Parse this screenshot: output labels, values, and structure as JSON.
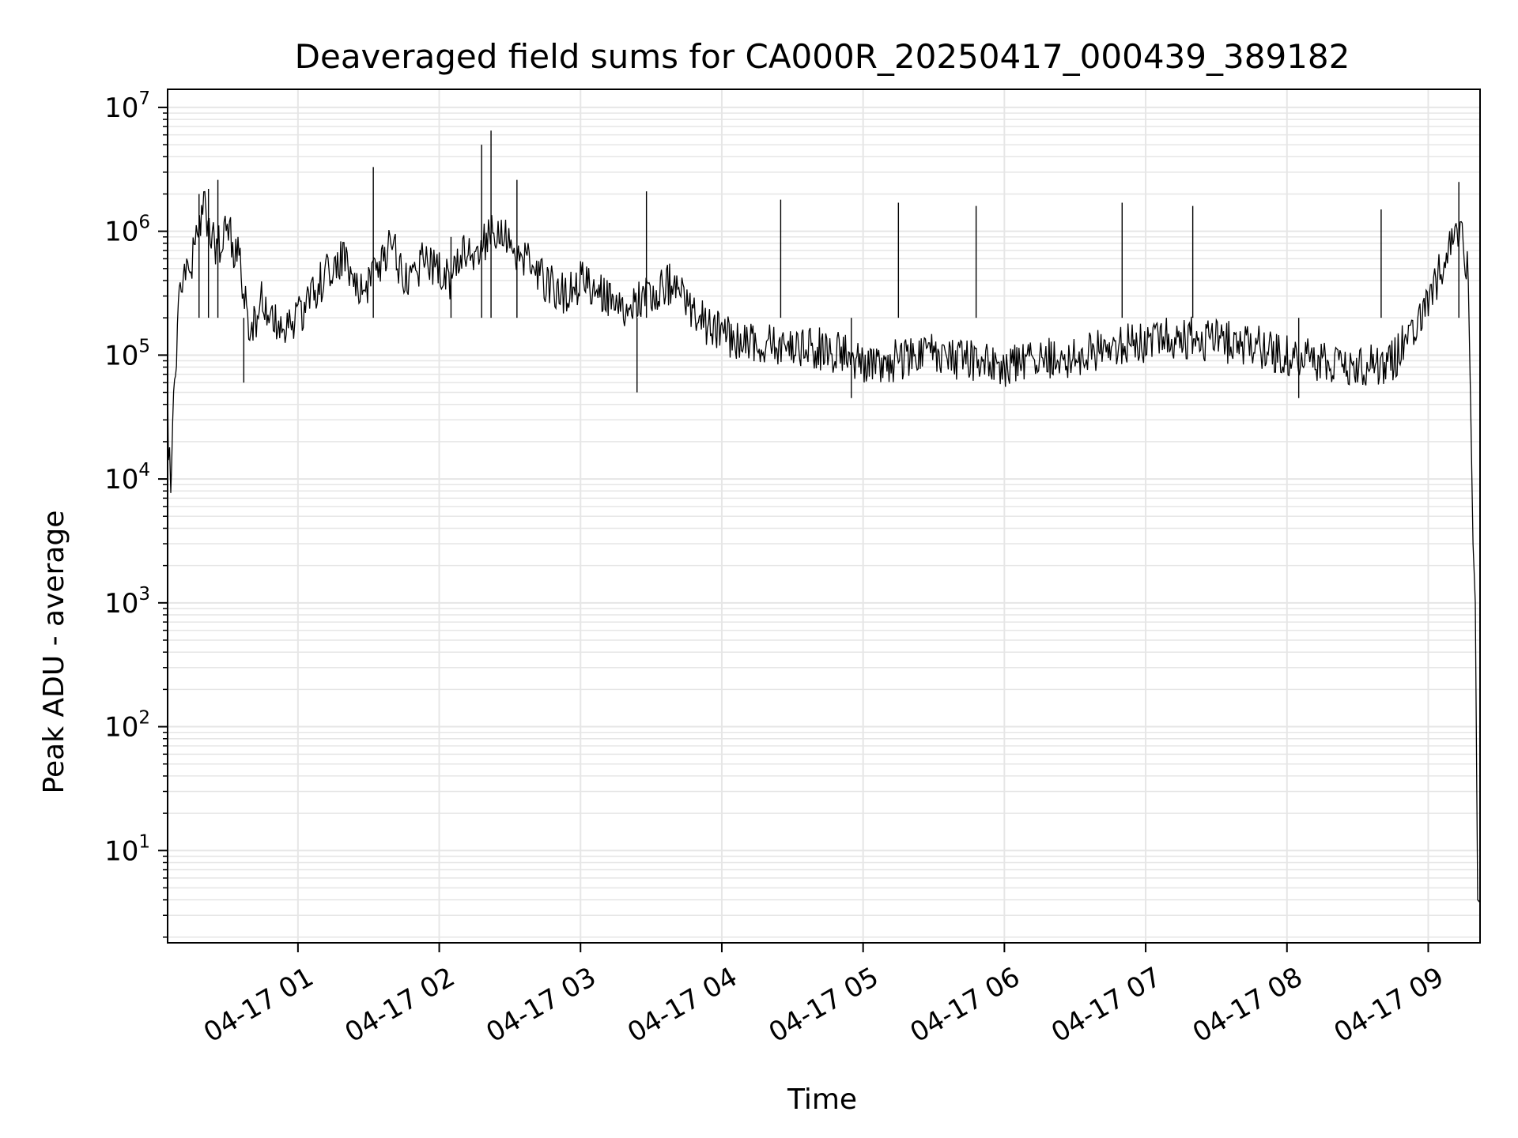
{
  "chart_data": {
    "type": "line",
    "title": "Deaveraged field sums for CA000R_20250417_000439_389182",
    "xlabel": "Time",
    "ylabel": "Peak ADU - average",
    "y_scale": "log",
    "ylim": [
      1.8,
      14000000
    ],
    "xlim": [
      "2025-04-17 00:04:39",
      "2025-04-17 09:22:00"
    ],
    "grid": true,
    "colors": {
      "line": "#000000",
      "grid": "#e6e6e6",
      "axis": "#000000",
      "background": "#ffffff"
    },
    "x_ticks": [
      {
        "time": "2025-04-17 01:00",
        "label": "04-17 01"
      },
      {
        "time": "2025-04-17 02:00",
        "label": "04-17 02"
      },
      {
        "time": "2025-04-17 03:00",
        "label": "04-17 03"
      },
      {
        "time": "2025-04-17 04:00",
        "label": "04-17 04"
      },
      {
        "time": "2025-04-17 05:00",
        "label": "04-17 05"
      },
      {
        "time": "2025-04-17 06:00",
        "label": "04-17 06"
      },
      {
        "time": "2025-04-17 07:00",
        "label": "04-17 07"
      },
      {
        "time": "2025-04-17 08:00",
        "label": "04-17 08"
      },
      {
        "time": "2025-04-17 09:00",
        "label": "04-17 09"
      }
    ],
    "y_ticks": [
      {
        "value": 10,
        "base": "10",
        "exp": "1"
      },
      {
        "value": 100,
        "base": "10",
        "exp": "2"
      },
      {
        "value": 1000,
        "base": "10",
        "exp": "3"
      },
      {
        "value": 10000,
        "base": "10",
        "exp": "4"
      },
      {
        "value": 100000,
        "base": "10",
        "exp": "5"
      },
      {
        "value": 1000000,
        "base": "10",
        "exp": "6"
      },
      {
        "value": 10000000,
        "base": "10",
        "exp": "7"
      }
    ],
    "series": [
      {
        "points": [
          [
            "2025-04-17 00:04:39",
            40000
          ],
          [
            "2025-04-17 00:05",
            20000
          ],
          [
            "2025-04-17 00:06",
            11000
          ],
          [
            "2025-04-17 00:08",
            90000
          ],
          [
            "2025-04-17 00:10",
            300000
          ],
          [
            "2025-04-17 00:15",
            600000
          ],
          [
            "2025-04-17 00:20",
            1500000
          ],
          [
            "2025-04-17 00:25",
            700000
          ],
          [
            "2025-04-17 00:30",
            1000000
          ],
          [
            "2025-04-17 00:35",
            600000
          ],
          [
            "2025-04-17 00:40",
            150000
          ],
          [
            "2025-04-17 00:45",
            300000
          ],
          [
            "2025-04-17 00:50",
            180000
          ],
          [
            "2025-04-17 00:55",
            150000
          ],
          [
            "2025-04-17 01:00",
            200000
          ],
          [
            "2025-04-17 01:05",
            300000
          ],
          [
            "2025-04-17 01:10",
            400000
          ],
          [
            "2025-04-17 01:15",
            500000
          ],
          [
            "2025-04-17 01:20",
            600000
          ],
          [
            "2025-04-17 01:25",
            400000
          ],
          [
            "2025-04-17 01:30",
            350000
          ],
          [
            "2025-04-17 01:35",
            500000
          ],
          [
            "2025-04-17 01:40",
            800000
          ],
          [
            "2025-04-17 01:45",
            400000
          ],
          [
            "2025-04-17 01:50",
            500000
          ],
          [
            "2025-04-17 01:55",
            600000
          ],
          [
            "2025-04-17 02:00",
            500000
          ],
          [
            "2025-04-17 02:05",
            400000
          ],
          [
            "2025-04-17 02:10",
            700000
          ],
          [
            "2025-04-17 02:15",
            600000
          ],
          [
            "2025-04-17 02:20",
            900000
          ],
          [
            "2025-04-17 02:25",
            1000000
          ],
          [
            "2025-04-17 02:30",
            800000
          ],
          [
            "2025-04-17 02:35",
            600000
          ],
          [
            "2025-04-17 02:40",
            500000
          ],
          [
            "2025-04-17 02:45",
            400000
          ],
          [
            "2025-04-17 02:50",
            350000
          ],
          [
            "2025-04-17 02:55",
            300000
          ],
          [
            "2025-04-17 03:00",
            400000
          ],
          [
            "2025-04-17 03:10",
            300000
          ],
          [
            "2025-04-17 03:20",
            250000
          ],
          [
            "2025-04-17 03:30",
            300000
          ],
          [
            "2025-04-17 03:40",
            400000
          ],
          [
            "2025-04-17 03:50",
            200000
          ],
          [
            "2025-04-17 04:00",
            150000
          ],
          [
            "2025-04-17 04:15",
            120000
          ],
          [
            "2025-04-17 04:30",
            120000
          ],
          [
            "2025-04-17 04:45",
            110000
          ],
          [
            "2025-04-17 05:00",
            90000
          ],
          [
            "2025-04-17 05:15",
            90000
          ],
          [
            "2025-04-17 05:30",
            100000
          ],
          [
            "2025-04-17 05:45",
            90000
          ],
          [
            "2025-04-17 06:00",
            80000
          ],
          [
            "2025-04-17 06:15",
            90000
          ],
          [
            "2025-04-17 06:30",
            100000
          ],
          [
            "2025-04-17 06:45",
            120000
          ],
          [
            "2025-04-17 07:00",
            130000
          ],
          [
            "2025-04-17 07:15",
            140000
          ],
          [
            "2025-04-17 07:30",
            130000
          ],
          [
            "2025-04-17 07:45",
            120000
          ],
          [
            "2025-04-17 08:00",
            100000
          ],
          [
            "2025-04-17 08:15",
            90000
          ],
          [
            "2025-04-17 08:30",
            80000
          ],
          [
            "2025-04-17 08:45",
            90000
          ],
          [
            "2025-04-17 09:00",
            250000
          ],
          [
            "2025-04-17 09:05",
            500000
          ],
          [
            "2025-04-17 09:10",
            900000
          ],
          [
            "2025-04-17 09:14",
            1200000
          ],
          [
            "2025-04-17 09:17",
            400000
          ],
          [
            "2025-04-17 09:18",
            40000
          ],
          [
            "2025-04-17 09:19",
            3000
          ],
          [
            "2025-04-17 09:20",
            1000
          ],
          [
            "2025-04-17 09:21",
            4
          ],
          [
            "2025-04-17 09:22",
            3.8
          ]
        ],
        "spikes": [
          [
            "2025-04-17 00:18",
            2000000
          ],
          [
            "2025-04-17 00:22",
            2200000
          ],
          [
            "2025-04-17 00:26",
            2600000
          ],
          [
            "2025-04-17 00:37",
            60000
          ],
          [
            "2025-04-17 01:32",
            3300000
          ],
          [
            "2025-04-17 02:05",
            900000
          ],
          [
            "2025-04-17 02:18",
            5000000
          ],
          [
            "2025-04-17 02:22",
            6500000
          ],
          [
            "2025-04-17 02:33",
            2600000
          ],
          [
            "2025-04-17 03:28",
            2100000
          ],
          [
            "2025-04-17 03:24",
            50000
          ],
          [
            "2025-04-17 04:25",
            1800000
          ],
          [
            "2025-04-17 04:55",
            45000
          ],
          [
            "2025-04-17 05:15",
            1700000
          ],
          [
            "2025-04-17 05:48",
            1600000
          ],
          [
            "2025-04-17 06:50",
            1700000
          ],
          [
            "2025-04-17 07:20",
            1600000
          ],
          [
            "2025-04-17 08:05",
            45000
          ],
          [
            "2025-04-17 08:40",
            1500000
          ],
          [
            "2025-04-17 09:13",
            2500000
          ]
        ]
      }
    ]
  }
}
